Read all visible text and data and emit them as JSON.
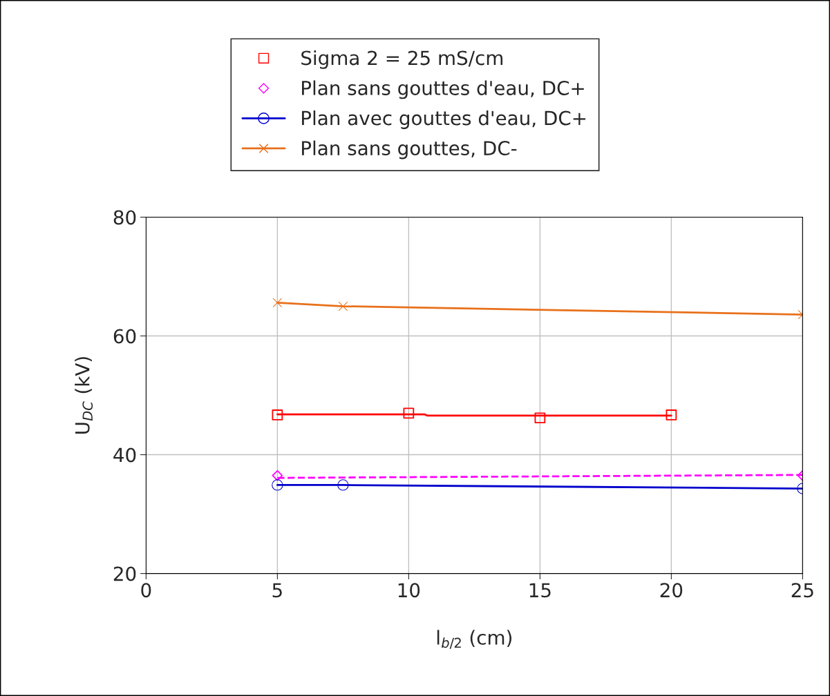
{
  "chart_data": {
    "type": "line",
    "xlabel": "l$_{b/2}$ (cm)",
    "ylabel": "U$_{DC}$ (kV)",
    "xlim": [
      0,
      25
    ],
    "xticks": [
      0,
      5,
      10,
      15,
      20,
      25
    ],
    "ylim": [
      20,
      80
    ],
    "yticks": [
      20,
      40,
      60,
      80
    ],
    "grid": true,
    "legend": "top",
    "series": [
      {
        "name": "Sigma 2 = 25 mS/cm",
        "type": "scatter",
        "marker": "square",
        "color": "#ff0000",
        "x": [
          5,
          10,
          15,
          20
        ],
        "values": [
          46.7,
          47.0,
          46.2,
          46.7
        ]
      },
      {
        "name": "Plan sans gouttes d'eau, DC+",
        "type": "scatter",
        "marker": "diamond",
        "color": "#ff00ff",
        "x": [
          5,
          25
        ],
        "values": [
          36.5,
          36.5
        ]
      },
      {
        "name": "Plan avec gouttes d'eau, DC+",
        "marker": "circle",
        "line_style": "solid",
        "color": "#0000cc",
        "x": [
          5,
          7.5,
          25
        ],
        "values": [
          34.9,
          34.9,
          34.3
        ]
      },
      {
        "name": "Plan sans gouttes, DC-",
        "marker": "cross",
        "line_style": "solid",
        "color": "#e8701a",
        "x": [
          5,
          7.5,
          25
        ],
        "values": [
          65.6,
          65.0,
          63.6
        ]
      },
      {
        "marker": "none",
        "line_style": "solid",
        "color": "#ff0000",
        "x": [
          5,
          10.6,
          10.7,
          20
        ],
        "values": [
          46.8,
          46.8,
          46.6,
          46.6
        ]
      },
      {
        "marker": "none",
        "line_style": "dashed",
        "color": "#ff00ff",
        "x": [
          5,
          25
        ],
        "values": [
          36.1,
          36.6
        ]
      }
    ]
  }
}
